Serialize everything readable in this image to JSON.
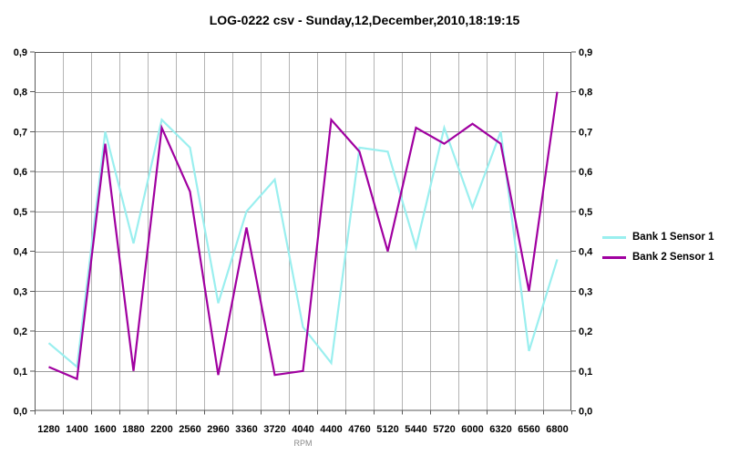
{
  "title": "LOG-0222 csv - Sunday,12,December,2010,18:19:15",
  "chart_data": {
    "type": "line",
    "xlabel": "RPM",
    "ylim": [
      0,
      0.9
    ],
    "y_tick_step": 0.1,
    "y_tick_labels_top_to_bottom": [
      "0,9",
      "0,8",
      "0,7",
      "0,6",
      "0,5",
      "0,4",
      "0,3",
      "0,2",
      "0,1",
      "0,0"
    ],
    "grid": true,
    "legend_position": "right-outside",
    "categories": [
      "1280",
      "1400",
      "1600",
      "1880",
      "2200",
      "2560",
      "2960",
      "3360",
      "3720",
      "4040",
      "4400",
      "4760",
      "5120",
      "5440",
      "5720",
      "6000",
      "6320",
      "6560",
      "6800"
    ],
    "series": [
      {
        "name": "Bank 1 Sensor 1",
        "color": "#9AEFEF",
        "values": [
          0.17,
          0.11,
          0.7,
          0.42,
          0.73,
          0.66,
          0.27,
          0.5,
          0.58,
          0.21,
          0.12,
          0.66,
          0.65,
          0.41,
          0.71,
          0.51,
          0.7,
          0.15,
          0.38
        ]
      },
      {
        "name": "Bank 2 Sensor 1",
        "color": "#A000A0",
        "values": [
          0.11,
          0.08,
          0.67,
          0.1,
          0.71,
          0.55,
          0.09,
          0.46,
          0.09,
          0.1,
          0.73,
          0.65,
          0.4,
          0.71,
          0.67,
          0.72,
          0.67,
          0.3,
          0.8
        ]
      }
    ],
    "colors": {
      "plot_border": "#5a5a5a",
      "h_gridline": "#9a9a9a",
      "v_gridline": "#b4b4b4",
      "background": "#ffffff"
    }
  }
}
